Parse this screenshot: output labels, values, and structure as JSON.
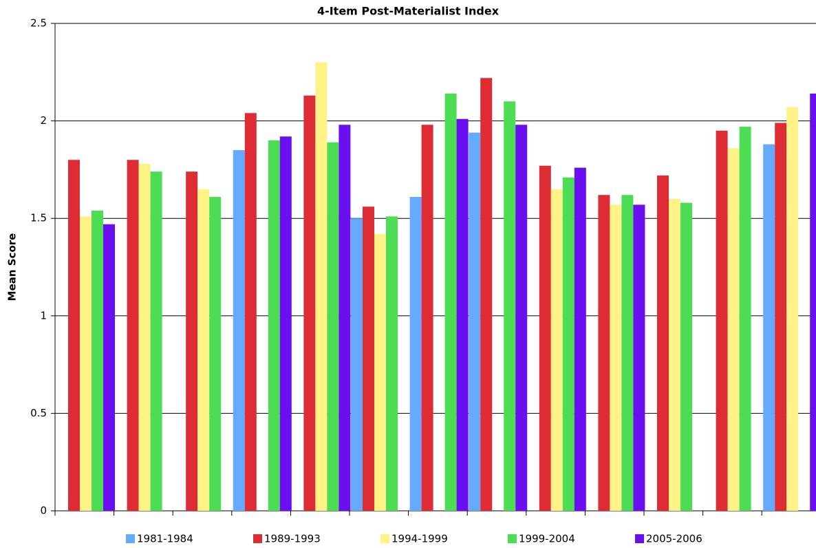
{
  "chart_data": {
    "type": "bar",
    "title": "4-Item Post-Materialist Index",
    "y_label": "Mean Score",
    "categories": [
      null,
      null,
      null,
      null,
      null,
      null,
      null,
      null,
      null,
      null,
      null,
      null,
      null
    ],
    "series": [
      {
        "name": "1981-1984",
        "color": "#66aaff",
        "values": [
          null,
          null,
          null,
          1.85,
          null,
          1.5,
          1.61,
          1.94,
          null,
          null,
          null,
          null,
          1.88
        ]
      },
      {
        "name": "1989-1993",
        "color": "#dd2c34",
        "values": [
          1.8,
          1.8,
          1.74,
          2.04,
          2.13,
          1.56,
          1.98,
          2.22,
          1.77,
          1.62,
          1.72,
          1.95,
          1.99
        ]
      },
      {
        "name": "1994-1999",
        "color": "#fff388",
        "values": [
          1.51,
          1.78,
          1.65,
          null,
          2.3,
          1.42,
          null,
          null,
          1.65,
          1.57,
          1.6,
          1.86,
          2.07
        ]
      },
      {
        "name": "1999-2004",
        "color": "#4ddd55",
        "values": [
          1.54,
          1.74,
          1.61,
          1.9,
          1.89,
          1.51,
          2.14,
          2.1,
          1.71,
          1.62,
          1.58,
          1.97,
          null
        ]
      },
      {
        "name": "2005-2006",
        "color": "#6a0ff0",
        "values": [
          1.47,
          null,
          null,
          1.92,
          1.98,
          null,
          2.01,
          1.98,
          1.76,
          1.57,
          null,
          null,
          2.14
        ]
      }
    ],
    "ylim": [
      0,
      2.5
    ],
    "yticks": [
      0,
      0.5,
      1,
      1.5,
      2,
      2.5
    ],
    "grid": true,
    "legend": "bottom"
  }
}
